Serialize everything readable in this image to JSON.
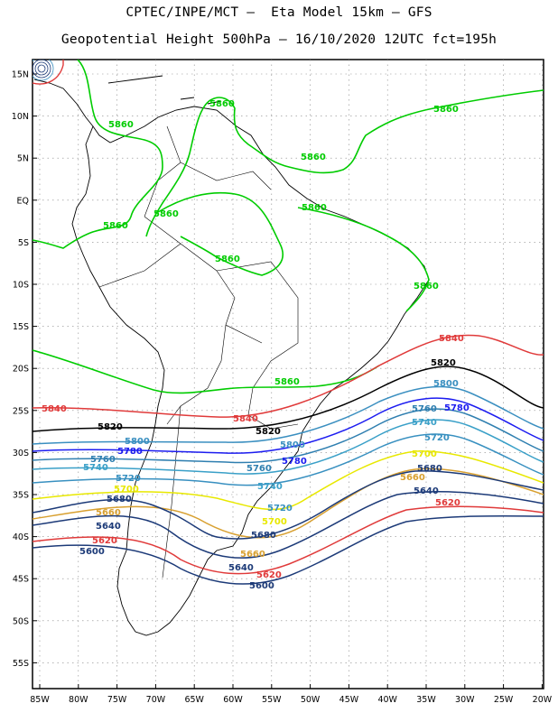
{
  "header": {
    "title_line1": "CPTEC/INPE/MCT –  Eta Model 15km – GFS",
    "title_line2": "Geopotential Height 500hPa – 16/10/2020 12UTC fct=195h"
  },
  "axes": {
    "lat_labels": [
      "15N",
      "10N",
      "5N",
      "EQ",
      "5S",
      "10S",
      "15S",
      "20S",
      "25S",
      "30S",
      "35S",
      "40S",
      "45S",
      "50S",
      "55S"
    ],
    "lon_labels": [
      "85W",
      "80W",
      "75W",
      "70W",
      "65W",
      "60W",
      "55W",
      "50W",
      "45W",
      "40W",
      "35W",
      "30W",
      "25W",
      "20W"
    ]
  },
  "colors": {
    "c5860": "#00cc00",
    "c5840": "#e03a3a",
    "c5820": "#000000",
    "c5800": "#3a8fc0",
    "c5780": "#1c1cf0",
    "c5760": "#2f7fb0",
    "c5740": "#3aa0c8",
    "c5720": "#3890c0",
    "c5700": "#e8e800",
    "c5680": "#d8a030",
    "c5660": "#1c3a78",
    "c5640": "#1c3a78",
    "c5620": "#e03a3a",
    "c5600": "#1c3a78"
  },
  "contour_labels": {
    "v5860": "5860",
    "v5840": "5840",
    "v5820": "5820",
    "v5800": "5800",
    "v5780": "5780",
    "v5760": "5760",
    "v5740": "5740",
    "v5720": "5720",
    "v5700": "5700",
    "v5680": "5680",
    "v5660": "5660",
    "v5640": "5640",
    "v5620": "5620",
    "v5600": "5600"
  }
}
